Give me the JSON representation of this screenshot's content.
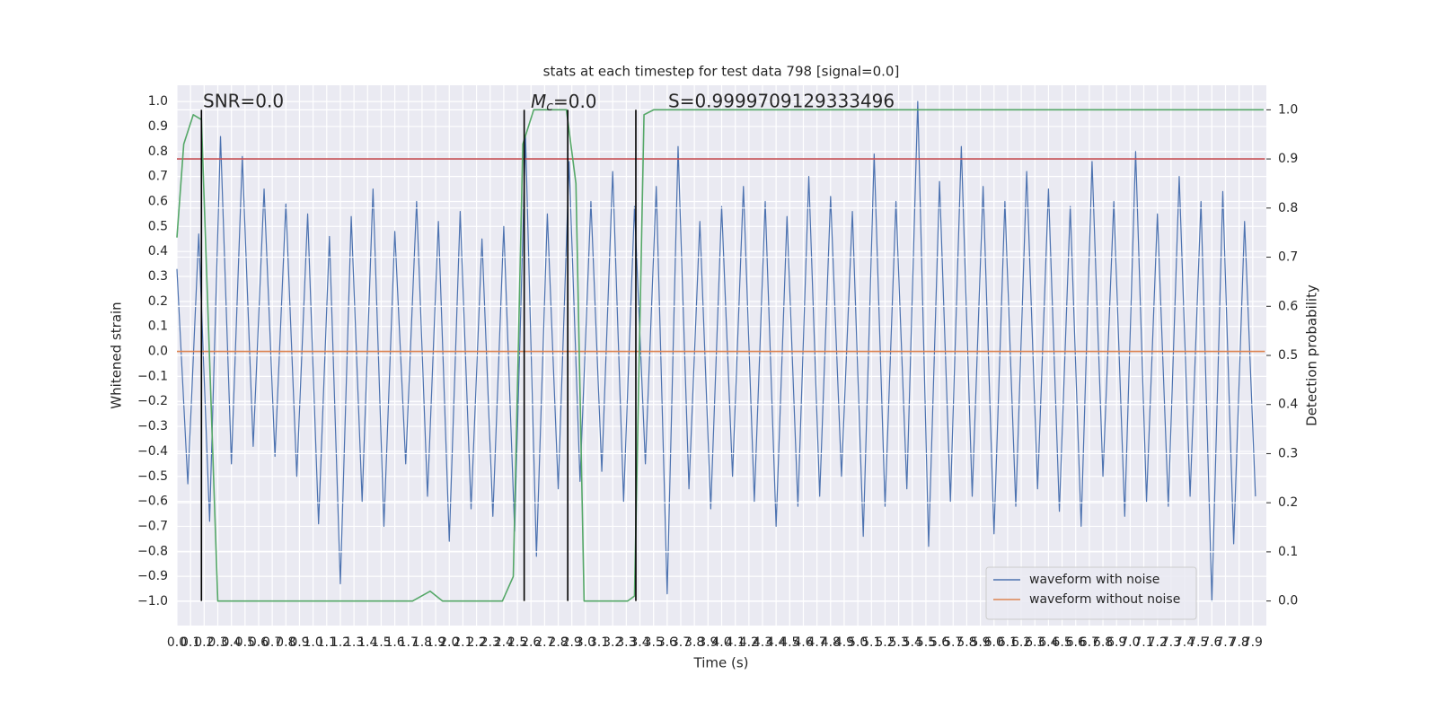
{
  "chart_data": {
    "type": "line",
    "title": "stats at each timestep for test data 798 [signal=0.0]",
    "x_label": "Time (s)",
    "y_label": "Whitened strain",
    "y2_label": "Detection probability",
    "annotations": [
      "SNR=0.0",
      {
        "main": "M",
        "sub": "c",
        "rest": "=0.0"
      },
      "S=0.9999709129333496"
    ],
    "xlim": [
      0,
      8.0
    ],
    "ylim": [
      -1.097,
      1.065
    ],
    "y2lim": [
      -0.05,
      1.05
    ],
    "grid": true,
    "legend": "lower right",
    "xticks": [
      {
        "value": 0,
        "label": "0.0"
      },
      0.1,
      0.2,
      0.3,
      0.4,
      0.5,
      0.6,
      0.7,
      0.8,
      0.9,
      {
        "value": 1,
        "label": "1.0"
      },
      1.1,
      1.2,
      1.3,
      1.4,
      1.5,
      1.6,
      1.7,
      1.8,
      1.9,
      {
        "value": 2,
        "label": "2.0"
      },
      2.1,
      2.2,
      2.3,
      2.4,
      2.5,
      2.6,
      2.7,
      2.8,
      2.9,
      {
        "value": 3,
        "label": "3.0"
      },
      3.1,
      3.2,
      3.3,
      3.4,
      3.5,
      3.6,
      3.7,
      3.8,
      3.9,
      {
        "value": 4,
        "label": "4.0"
      },
      4.1,
      4.2,
      4.3,
      4.4,
      4.5,
      4.6,
      4.7,
      4.8,
      4.9,
      {
        "value": 5,
        "label": "5.0"
      },
      5.1,
      5.2,
      5.3,
      5.4,
      5.5,
      5.6,
      5.7,
      5.8,
      5.9,
      {
        "value": 6,
        "label": "6.0"
      },
      6.1,
      6.2,
      6.3,
      6.4,
      6.5,
      6.6,
      6.7,
      6.8,
      6.9,
      {
        "value": 7,
        "label": "7.0"
      },
      7.1,
      7.2,
      7.3,
      7.4,
      7.5,
      7.6,
      7.7,
      7.8,
      7.9
    ],
    "yticks": [
      {
        "value": -1,
        "label": "−1.0"
      },
      {
        "value": -0.9,
        "label": "−0.9"
      },
      {
        "value": -0.8,
        "label": "−0.8"
      },
      {
        "value": -0.7,
        "label": "−0.7"
      },
      {
        "value": -0.6,
        "label": "−0.6"
      },
      {
        "value": -0.5,
        "label": "−0.5"
      },
      {
        "value": -0.4,
        "label": "−0.4"
      },
      {
        "value": -0.3,
        "label": "−0.3"
      },
      {
        "value": -0.2,
        "label": "−0.2"
      },
      {
        "value": -0.1,
        "label": "−0.1"
      },
      {
        "value": 0,
        "label": "0.0"
      },
      0.1,
      0.2,
      0.3,
      0.4,
      0.5,
      0.6,
      0.7,
      0.8,
      0.9,
      {
        "value": 1,
        "label": "1.0"
      }
    ],
    "y2ticks": [
      {
        "value": 0,
        "label": "0.0"
      },
      0.1,
      0.2,
      0.3,
      0.4,
      0.5,
      0.6,
      0.7,
      0.8,
      0.9,
      {
        "value": 1,
        "label": "1.0"
      }
    ],
    "vlines": [
      0.18,
      2.55,
      2.87,
      3.37
    ],
    "series": [
      {
        "name": "waveform with noise",
        "color": "#4c72b0",
        "x": [
          0,
          0.08,
          0.16,
          0.24,
          0.32,
          0.4,
          0.48,
          0.56,
          0.64,
          0.72,
          0.8,
          0.88,
          0.96,
          1.04,
          1.12,
          1.2,
          1.28,
          1.36,
          1.44,
          1.52,
          1.6,
          1.68,
          1.76,
          1.84,
          1.92,
          2.0,
          2.08,
          2.16,
          2.24,
          2.32,
          2.4,
          2.48,
          2.56,
          2.64,
          2.72,
          2.8,
          2.88,
          2.96,
          3.04,
          3.12,
          3.2,
          3.28,
          3.36,
          3.44,
          3.52,
          3.6,
          3.68,
          3.76,
          3.84,
          3.92,
          4.0,
          4.08,
          4.16,
          4.24,
          4.32,
          4.4,
          4.48,
          4.56,
          4.64,
          4.72,
          4.8,
          4.88,
          4.96,
          5.04,
          5.12,
          5.2,
          5.28,
          5.36,
          5.44,
          5.52,
          5.6,
          5.68,
          5.76,
          5.84,
          5.92,
          6.0,
          6.08,
          6.16,
          6.24,
          6.32,
          6.4,
          6.48,
          6.56,
          6.64,
          6.72,
          6.8,
          6.88,
          6.96,
          7.04,
          7.12,
          7.2,
          7.28,
          7.36,
          7.44,
          7.52,
          7.6,
          7.68,
          7.76,
          7.84,
          7.92
        ],
        "values": [
          0.33,
          -0.53,
          0.47,
          -0.68,
          0.86,
          -0.45,
          0.78,
          -0.38,
          0.65,
          -0.42,
          0.59,
          -0.5,
          0.55,
          -0.69,
          0.46,
          -0.93,
          0.54,
          -0.6,
          0.65,
          -0.7,
          0.48,
          -0.45,
          0.6,
          -0.58,
          0.52,
          -0.76,
          0.56,
          -0.63,
          0.45,
          -0.66,
          0.5,
          -0.72,
          0.86,
          -0.82,
          0.55,
          -0.55,
          0.76,
          -0.52,
          0.6,
          -0.48,
          0.72,
          -0.6,
          0.58,
          -0.45,
          0.66,
          -0.97,
          0.82,
          -0.55,
          0.52,
          -0.63,
          0.58,
          -0.5,
          0.66,
          -0.6,
          0.6,
          -0.7,
          0.54,
          -0.62,
          0.7,
          -0.58,
          0.62,
          -0.5,
          0.56,
          -0.74,
          0.79,
          -0.62,
          0.6,
          -0.55,
          1.0,
          -0.78,
          0.68,
          -0.6,
          0.82,
          -0.58,
          0.66,
          -0.73,
          0.6,
          -0.62,
          0.72,
          -0.55,
          0.65,
          -0.64,
          0.58,
          -0.7,
          0.76,
          -0.5,
          0.6,
          -0.66,
          0.8,
          -0.6,
          0.55,
          -0.62,
          0.7,
          -0.58,
          0.6,
          -1.0,
          0.64,
          -0.77,
          0.52,
          -0.58
        ]
      },
      {
        "name": "waveform without noise",
        "color": "#dd8452",
        "x": [
          0,
          7.99
        ],
        "values": [
          0,
          0
        ]
      },
      {
        "color": "#c44e52",
        "axis": "y2",
        "x": [
          0,
          7.99
        ],
        "values": [
          0.9,
          0.9
        ]
      },
      {
        "color": "#55a868",
        "axis": "y2",
        "x": [
          0,
          0.05,
          0.12,
          0.18,
          0.3,
          0.6,
          1.0,
          1.5,
          1.73,
          1.86,
          1.95,
          2.2,
          2.39,
          2.47,
          2.54,
          2.62,
          2.75,
          2.86,
          2.93,
          2.99,
          3.1,
          3.31,
          3.36,
          3.43,
          3.5,
          4.5,
          5.5,
          6.5,
          7.5,
          7.98
        ],
        "values": [
          0.74,
          0.93,
          0.99,
          0.98,
          0.0,
          0.0,
          0.0,
          0.0,
          0.0,
          0.02,
          0.0,
          0.0,
          0.0,
          0.05,
          0.93,
          1.0,
          1.0,
          1.0,
          0.85,
          0.0,
          0.0,
          0.0,
          0.01,
          0.99,
          1.0,
          1.0,
          1.0,
          1.0,
          1.0,
          1.0
        ]
      }
    ]
  }
}
